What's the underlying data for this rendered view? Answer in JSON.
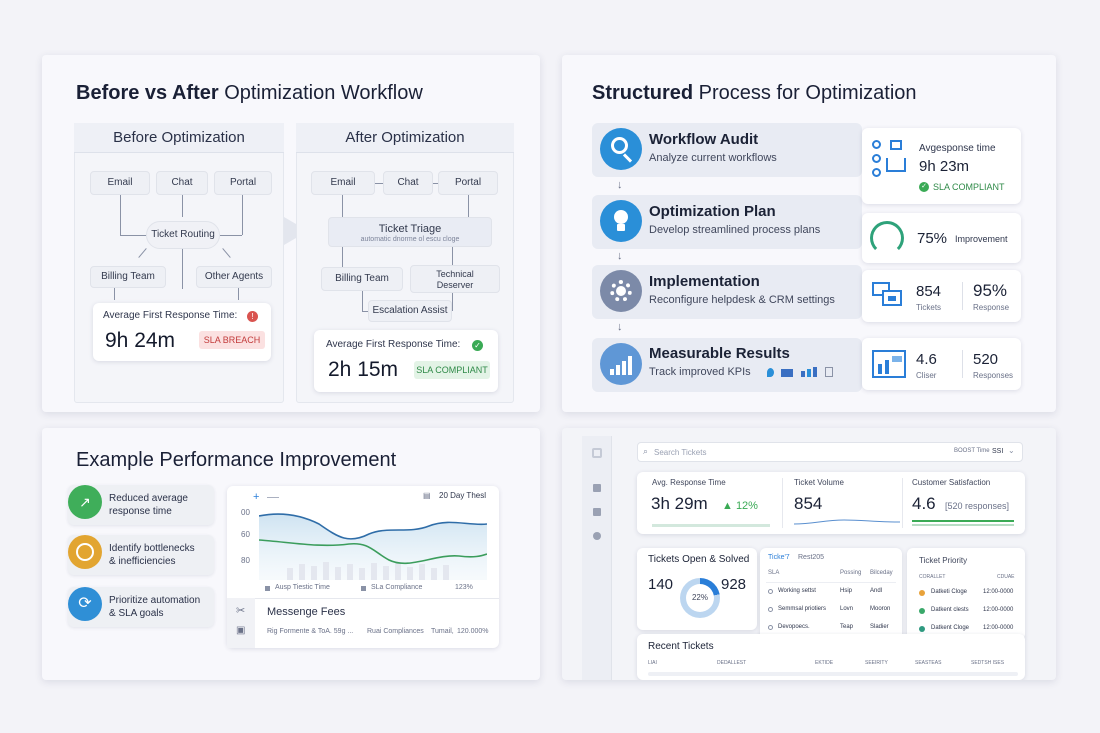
{
  "panel1": {
    "title_bold": "Before vs After",
    "title_rest": " Optimization Workflow",
    "before": {
      "heading": "Before Optimization",
      "channels": [
        "Email",
        "Chat",
        "Portal"
      ],
      "routing": "Ticket Routing",
      "billing": "Billing Team",
      "other": "Other Agents",
      "metric_label": "Average First Response Time:",
      "metric_value": "9h 24m",
      "badge": "SLA BREACH"
    },
    "after": {
      "heading": "After Optimization",
      "channels": [
        "Email",
        "Chat",
        "Portal"
      ],
      "triage": "Ticket Triage",
      "triage_sub": "automatic dnorme ol escu cloge",
      "billing": "Billing Team",
      "technical": "Technical\nDeserver",
      "escalation": "Escalation Assist",
      "metric_label": "Average First Response Time:",
      "metric_value": "2h 15m",
      "badge": "SLA COMPLIANT"
    }
  },
  "panel2": {
    "title_bold": "Structured",
    "title_rest": " Process for Optimization",
    "steps": [
      {
        "title": "Workflow Audit",
        "desc": "Analyze current workflows"
      },
      {
        "title": "Optimization Plan",
        "desc": "Develop streamlined process plans"
      },
      {
        "title": "Implementation",
        "desc": "Reconfigure helpdesk & CRM settings"
      },
      {
        "title": "Measurable Results",
        "desc": "Track improved KPIs"
      }
    ],
    "card1": {
      "label": "Avgesponse time",
      "value": "9h 23m",
      "badge": "SLA COMPLIANT"
    },
    "card2": {
      "value": "75%",
      "label": "Improvement"
    },
    "card3": {
      "v1": "854",
      "l1": "Tickets",
      "v2": "95%",
      "l2": "Response"
    },
    "card4": {
      "v1": "4.6",
      "l1": "Cliser",
      "v2": "520",
      "l2": "Responses"
    }
  },
  "panel3": {
    "title": "Example Performance Improvement",
    "items": [
      {
        "text": "Reduced average\nresponse time",
        "color": "#3fae5a"
      },
      {
        "text": "Identify bottlenecks\n& inefficiencies",
        "color": "#e2a531"
      },
      {
        "text": "Prioritize automation\n& SLA goals",
        "color": "#2f8fd6"
      }
    ],
    "chart": {
      "header_right": "20 Day Thesl",
      "plus": "+",
      "y_ticks": [
        "00",
        "60",
        "80"
      ],
      "legend1": "Ausp Tiestic Time",
      "legend2": "SLa Compliance",
      "legend3": "123%",
      "footer_title": "Messenge Fees",
      "footer1": "Rig Formente  &  ToA. 59g ...",
      "footer2": "Ruai Compliances",
      "footer3": "Tumail,",
      "footer4": "120.000%"
    }
  },
  "panel4": {
    "search_placeholder": "Search Tickets",
    "top_right": "BOOST Time",
    "top_right_val": "SSI",
    "kpi1": {
      "label": "Avg. Response Time",
      "value": "3h 29m",
      "delta": "▲ 12%"
    },
    "kpi2": {
      "label": "Ticket Volume",
      "value": "854"
    },
    "kpi3": {
      "label": "Customer Satisfaction",
      "value": "4.6",
      "sub": "[520 responses]"
    },
    "open": {
      "title": "Tickets Open & Solved",
      "v1": "140",
      "v2": "928",
      "pct": "22%"
    },
    "list": {
      "tab1": "Ticke'7",
      "tab2": "Rest205",
      "cols": [
        "SLA",
        "Possing",
        "Bilceday"
      ],
      "rows": [
        [
          "Working settst",
          "Hsip",
          "Andl"
        ],
        [
          "Semmsal priotiers",
          "Lovn",
          "Mooron"
        ],
        [
          "Devopoecs.",
          "Teap",
          "Sladier"
        ]
      ]
    },
    "priority": {
      "title": "Ticket Priority",
      "col1": "CORALLET",
      "col2": "CDUAE",
      "rows": [
        {
          "name": "Datketi Cloge",
          "time": "12:00-0000",
          "color": "#e8a23a"
        },
        {
          "name": "Datkent clests",
          "time": "12:00-0000",
          "color": "#3aa86a"
        },
        {
          "name": "Datkent Cloge",
          "time": "12:00-0000",
          "color": "#2f9a80"
        }
      ]
    },
    "recent": {
      "title": "Recent Tickets",
      "cols": [
        "LIAI",
        "DEDALLEST",
        "EKTIDE",
        "SEEIRITY",
        "SEASTEAS",
        "SEDTSH ISES"
      ]
    }
  }
}
